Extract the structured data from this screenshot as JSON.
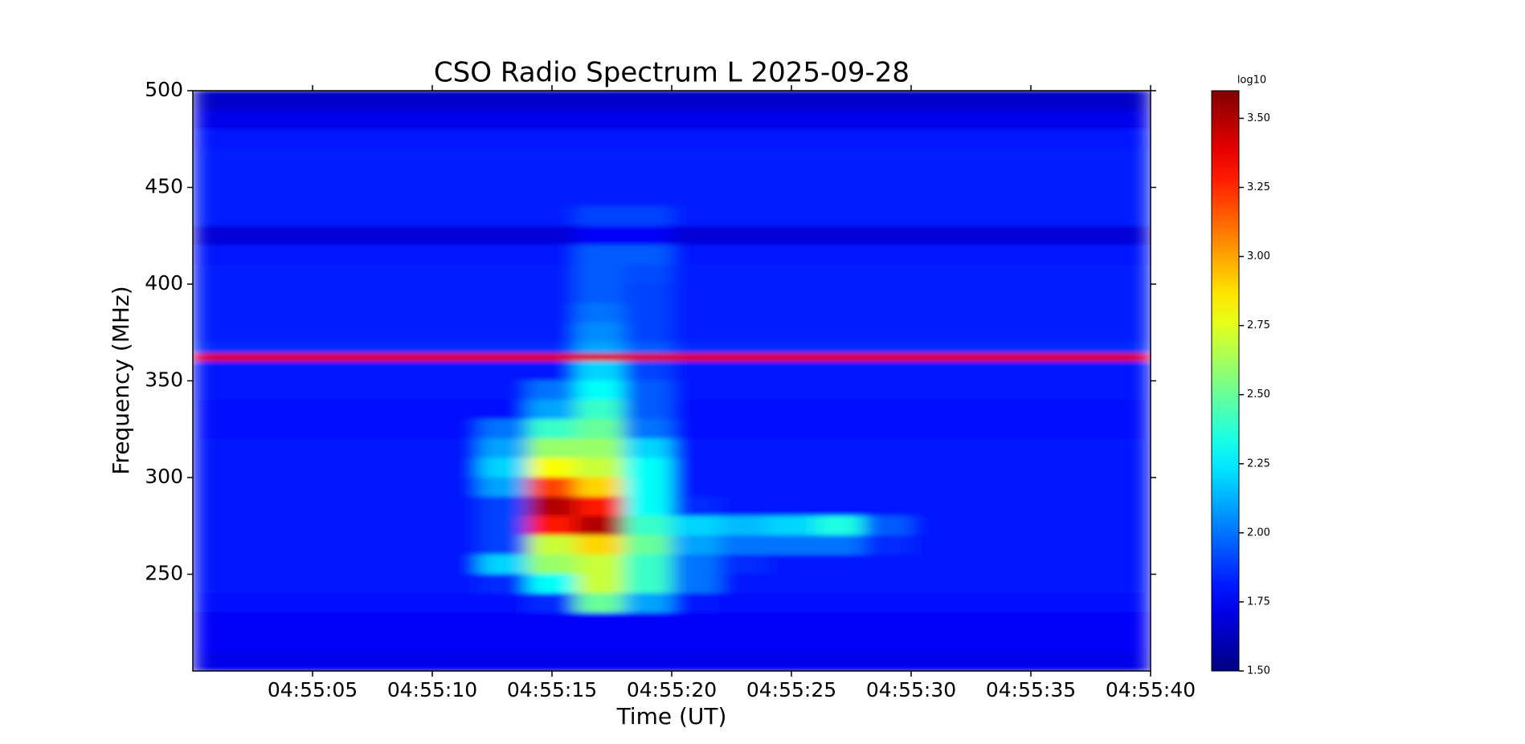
{
  "chart_data": {
    "type": "heatmap",
    "title": "CSO Radio Spectrum L 2025-09-28",
    "xlabel": "Time (UT)",
    "ylabel": "Frequency (MHz)",
    "xlim": [
      "04:55:00",
      "04:55:40"
    ],
    "xticks": [
      "04:55:05",
      "04:55:10",
      "04:55:15",
      "04:55:20",
      "04:55:25",
      "04:55:30",
      "04:55:35",
      "04:55:40"
    ],
    "ylim": [
      200,
      500
    ],
    "yticks": [
      250,
      300,
      350,
      400,
      450,
      500
    ],
    "xbins": [
      "04:55:00",
      "04:55:02",
      "04:55:04",
      "04:55:06",
      "04:55:08",
      "04:55:10",
      "04:55:12",
      "04:55:14",
      "04:55:16",
      "04:55:18",
      "04:55:20",
      "04:55:22",
      "04:55:24",
      "04:55:26",
      "04:55:28",
      "04:55:30",
      "04:55:32",
      "04:55:34",
      "04:55:36",
      "04:55:38",
      "04:55:40"
    ],
    "ybins": [
      500,
      490,
      480,
      470,
      460,
      450,
      440,
      430,
      420,
      410,
      400,
      390,
      380,
      370,
      364,
      360,
      350,
      340,
      330,
      320,
      310,
      300,
      290,
      280,
      270,
      260,
      250,
      240,
      230,
      220,
      210,
      200
    ],
    "colormap": "jet",
    "colorbar": {
      "label": "log10",
      "lim": [
        1.5,
        3.6
      ],
      "ticks": [
        {
          "value": 1.5,
          "label": "1.50"
        },
        {
          "value": 1.75,
          "label": "1.75"
        },
        {
          "value": 2.0,
          "label": "2.00"
        },
        {
          "value": 2.25,
          "label": "2.25"
        },
        {
          "value": 2.5,
          "label": "2.50"
        },
        {
          "value": 2.75,
          "label": "2.75"
        },
        {
          "value": 3.0,
          "label": "3.00"
        },
        {
          "value": 3.25,
          "label": "3.25"
        },
        {
          "value": 3.5,
          "label": "3.50"
        }
      ]
    },
    "values": [
      [
        1.65,
        1.65,
        1.65,
        1.65,
        1.65,
        1.65,
        1.65,
        1.65,
        1.65,
        1.65,
        1.65,
        1.65,
        1.65,
        1.65,
        1.65,
        1.65,
        1.65,
        1.65,
        1.65,
        1.65
      ],
      [
        1.72,
        1.72,
        1.72,
        1.72,
        1.72,
        1.72,
        1.72,
        1.72,
        1.72,
        1.72,
        1.72,
        1.72,
        1.72,
        1.72,
        1.72,
        1.72,
        1.72,
        1.72,
        1.72,
        1.72
      ],
      [
        1.8,
        1.8,
        1.8,
        1.8,
        1.8,
        1.8,
        1.8,
        1.8,
        1.8,
        1.8,
        1.8,
        1.8,
        1.8,
        1.8,
        1.8,
        1.8,
        1.8,
        1.8,
        1.8,
        1.8
      ],
      [
        1.82,
        1.82,
        1.82,
        1.82,
        1.82,
        1.82,
        1.82,
        1.82,
        1.82,
        1.82,
        1.82,
        1.82,
        1.82,
        1.82,
        1.82,
        1.82,
        1.82,
        1.82,
        1.82,
        1.82
      ],
      [
        1.82,
        1.82,
        1.82,
        1.82,
        1.82,
        1.82,
        1.82,
        1.82,
        1.82,
        1.82,
        1.82,
        1.82,
        1.82,
        1.82,
        1.82,
        1.82,
        1.82,
        1.82,
        1.82,
        1.82
      ],
      [
        1.82,
        1.82,
        1.82,
        1.82,
        1.82,
        1.82,
        1.82,
        1.82,
        1.82,
        1.82,
        1.82,
        1.82,
        1.82,
        1.82,
        1.82,
        1.82,
        1.82,
        1.82,
        1.82,
        1.82
      ],
      [
        1.82,
        1.82,
        1.82,
        1.82,
        1.82,
        1.82,
        1.82,
        1.82,
        1.9,
        1.9,
        1.82,
        1.82,
        1.82,
        1.82,
        1.82,
        1.82,
        1.82,
        1.82,
        1.82,
        1.82
      ],
      [
        1.68,
        1.68,
        1.68,
        1.68,
        1.68,
        1.68,
        1.68,
        1.68,
        1.75,
        1.75,
        1.68,
        1.68,
        1.68,
        1.68,
        1.68,
        1.68,
        1.68,
        1.68,
        1.68,
        1.68
      ],
      [
        1.8,
        1.8,
        1.8,
        1.8,
        1.8,
        1.8,
        1.8,
        1.8,
        1.95,
        1.95,
        1.8,
        1.8,
        1.8,
        1.8,
        1.8,
        1.8,
        1.8,
        1.8,
        1.8,
        1.8
      ],
      [
        1.82,
        1.82,
        1.82,
        1.82,
        1.82,
        1.82,
        1.82,
        1.82,
        1.95,
        1.92,
        1.82,
        1.82,
        1.82,
        1.82,
        1.82,
        1.82,
        1.82,
        1.82,
        1.82,
        1.82
      ],
      [
        1.82,
        1.82,
        1.82,
        1.82,
        1.82,
        1.82,
        1.82,
        1.82,
        1.95,
        1.9,
        1.82,
        1.82,
        1.82,
        1.82,
        1.82,
        1.82,
        1.82,
        1.82,
        1.82,
        1.82
      ],
      [
        1.82,
        1.82,
        1.82,
        1.82,
        1.82,
        1.82,
        1.82,
        1.82,
        2.0,
        1.9,
        1.82,
        1.82,
        1.82,
        1.82,
        1.82,
        1.82,
        1.82,
        1.82,
        1.82,
        1.82
      ],
      [
        1.82,
        1.82,
        1.82,
        1.82,
        1.82,
        1.82,
        1.82,
        1.82,
        2.05,
        1.9,
        1.82,
        1.82,
        1.82,
        1.82,
        1.82,
        1.82,
        1.82,
        1.82,
        1.82,
        1.82
      ],
      [
        1.85,
        1.85,
        1.85,
        1.85,
        1.85,
        1.85,
        1.85,
        1.85,
        2.1,
        1.95,
        1.85,
        1.85,
        1.85,
        1.85,
        1.85,
        1.85,
        1.85,
        1.85,
        1.85,
        1.85
      ],
      [
        3.4,
        3.4,
        3.4,
        3.4,
        3.4,
        3.4,
        3.4,
        3.4,
        3.4,
        3.4,
        3.4,
        3.4,
        3.4,
        3.4,
        3.4,
        3.4,
        3.4,
        3.4,
        3.4,
        3.4
      ],
      [
        1.8,
        1.8,
        1.8,
        1.8,
        1.8,
        1.8,
        1.8,
        1.8,
        2.2,
        1.9,
        1.8,
        1.8,
        1.8,
        1.8,
        1.8,
        1.8,
        1.8,
        1.8,
        1.8,
        1.8
      ],
      [
        1.8,
        1.8,
        1.8,
        1.8,
        1.8,
        1.8,
        1.8,
        2.0,
        2.3,
        1.95,
        1.8,
        1.8,
        1.8,
        1.8,
        1.8,
        1.8,
        1.8,
        1.8,
        1.8,
        1.8
      ],
      [
        1.78,
        1.78,
        1.78,
        1.78,
        1.78,
        1.78,
        1.78,
        2.1,
        2.4,
        1.95,
        1.78,
        1.78,
        1.78,
        1.78,
        1.78,
        1.78,
        1.78,
        1.78,
        1.78,
        1.78
      ],
      [
        1.78,
        1.78,
        1.78,
        1.78,
        1.78,
        1.78,
        2.0,
        2.4,
        2.5,
        2.0,
        1.78,
        1.78,
        1.78,
        1.78,
        1.78,
        1.78,
        1.78,
        1.78,
        1.78,
        1.78
      ],
      [
        1.8,
        1.8,
        1.8,
        1.8,
        1.8,
        1.8,
        2.1,
        2.6,
        2.6,
        2.2,
        1.8,
        1.8,
        1.8,
        1.8,
        1.8,
        1.8,
        1.8,
        1.8,
        1.8,
        1.8
      ],
      [
        1.8,
        1.8,
        1.8,
        1.8,
        1.8,
        1.8,
        2.2,
        2.8,
        2.7,
        2.3,
        1.8,
        1.8,
        1.8,
        1.8,
        1.8,
        1.8,
        1.8,
        1.8,
        1.8,
        1.8
      ],
      [
        1.8,
        1.8,
        1.8,
        1.8,
        1.8,
        1.8,
        2.1,
        3.2,
        2.9,
        2.3,
        1.8,
        1.8,
        1.8,
        1.8,
        1.8,
        1.8,
        1.8,
        1.8,
        1.8,
        1.8
      ],
      [
        1.8,
        1.8,
        1.8,
        1.8,
        1.8,
        1.8,
        1.9,
        3.5,
        3.3,
        2.3,
        1.85,
        1.8,
        1.8,
        1.8,
        1.8,
        1.8,
        1.8,
        1.8,
        1.8,
        1.8
      ],
      [
        1.8,
        1.8,
        1.8,
        1.8,
        1.8,
        1.8,
        1.9,
        3.3,
        3.5,
        2.4,
        2.2,
        2.15,
        2.2,
        2.35,
        1.95,
        1.8,
        1.8,
        1.8,
        1.8,
        1.8
      ],
      [
        1.8,
        1.8,
        1.8,
        1.8,
        1.8,
        1.8,
        1.9,
        2.7,
        2.9,
        2.5,
        2.1,
        2.0,
        2.0,
        2.0,
        1.85,
        1.8,
        1.8,
        1.8,
        1.8,
        1.8
      ],
      [
        1.8,
        1.8,
        1.8,
        1.8,
        1.8,
        1.8,
        2.2,
        2.6,
        2.7,
        2.4,
        2.0,
        1.85,
        1.8,
        1.8,
        1.8,
        1.8,
        1.8,
        1.8,
        1.8,
        1.8
      ],
      [
        1.8,
        1.8,
        1.8,
        1.8,
        1.8,
        1.8,
        1.85,
        2.3,
        2.7,
        2.4,
        2.0,
        1.8,
        1.8,
        1.8,
        1.8,
        1.8,
        1.8,
        1.8,
        1.8,
        1.8
      ],
      [
        1.78,
        1.78,
        1.78,
        1.78,
        1.78,
        1.78,
        1.78,
        1.85,
        2.5,
        2.1,
        1.8,
        1.78,
        1.78,
        1.78,
        1.78,
        1.78,
        1.78,
        1.78,
        1.78,
        1.78
      ],
      [
        1.75,
        1.75,
        1.75,
        1.75,
        1.75,
        1.75,
        1.75,
        1.75,
        1.75,
        1.75,
        1.75,
        1.75,
        1.75,
        1.75,
        1.75,
        1.75,
        1.75,
        1.75,
        1.75,
        1.75
      ],
      [
        1.75,
        1.75,
        1.75,
        1.75,
        1.75,
        1.75,
        1.75,
        1.75,
        1.75,
        1.75,
        1.75,
        1.75,
        1.75,
        1.75,
        1.75,
        1.75,
        1.75,
        1.75,
        1.75,
        1.75
      ],
      [
        1.72,
        1.72,
        1.72,
        1.72,
        1.72,
        1.72,
        1.72,
        1.72,
        1.72,
        1.72,
        1.72,
        1.72,
        1.72,
        1.72,
        1.72,
        1.72,
        1.72,
        1.72,
        1.72,
        1.72
      ]
    ]
  }
}
